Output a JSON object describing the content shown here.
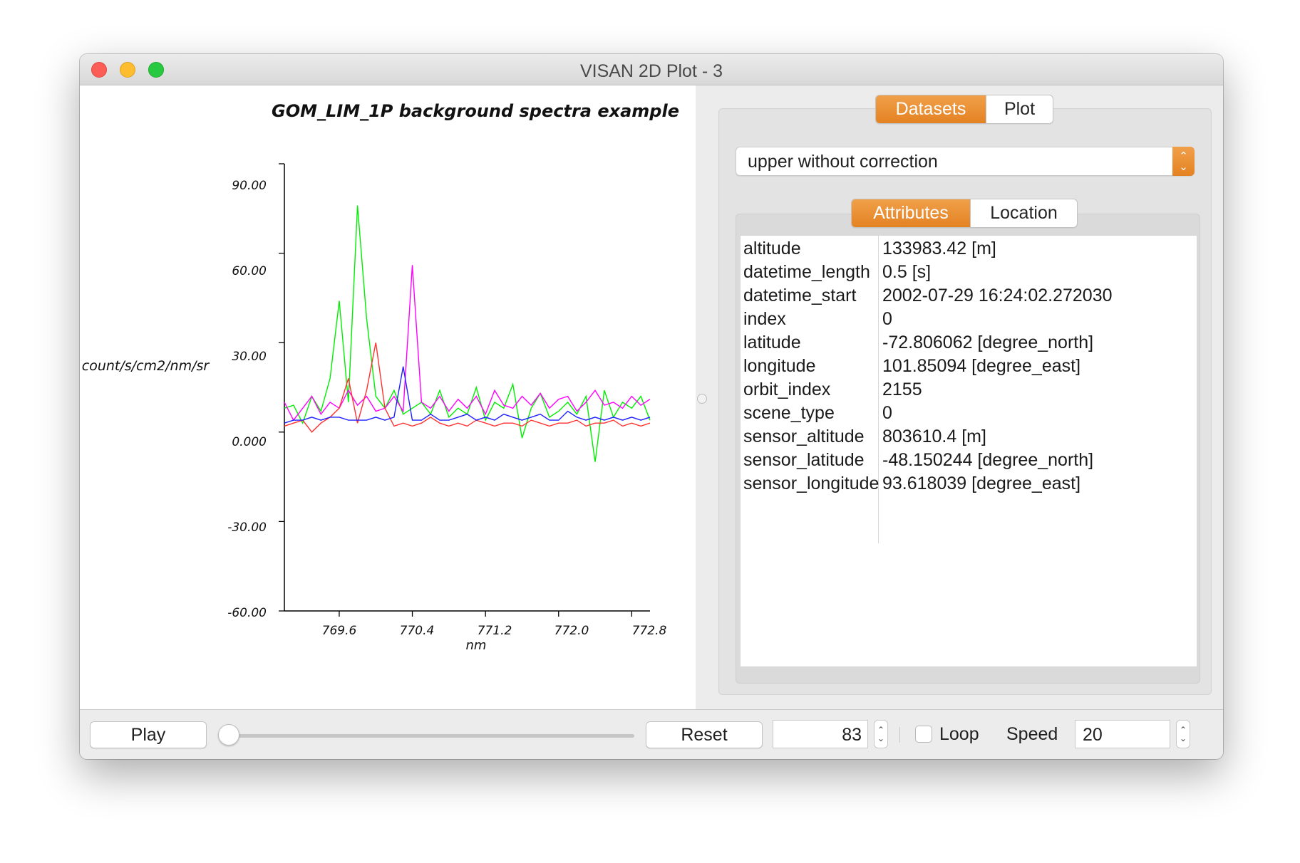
{
  "window": {
    "title": "VISAN 2D Plot - 3"
  },
  "plot": {
    "title": "GOM_LIM_1P background spectra example",
    "ylabel": "count/s/cm2/nm/sr",
    "xlabel": "nm",
    "yticks": [
      "90.00",
      "60.00",
      "30.00",
      "0.000",
      "-30.00",
      "-60.00"
    ],
    "xticks": [
      "769.6",
      "770.4",
      "771.2",
      "772.0",
      "772.8"
    ]
  },
  "chart_data": {
    "type": "line",
    "title": "GOM_LIM_1P background spectra example",
    "xlabel": "nm",
    "ylabel": "count/s/cm2/nm/sr",
    "xlim": [
      769.0,
      773.0
    ],
    "ylim": [
      -60,
      90
    ],
    "grid": false,
    "x": [
      769.0,
      769.1,
      769.2,
      769.3,
      769.4,
      769.5,
      769.6,
      769.7,
      769.8,
      769.9,
      770.0,
      770.1,
      770.2,
      770.3,
      770.4,
      770.5,
      770.6,
      770.7,
      770.8,
      770.9,
      771.0,
      771.1,
      771.2,
      771.3,
      771.4,
      771.5,
      771.6,
      771.7,
      771.8,
      771.9,
      772.0,
      772.1,
      772.2,
      772.3,
      772.4,
      772.5,
      772.6,
      772.7,
      772.8,
      772.9,
      773.0
    ],
    "series": [
      {
        "color": "#00ee00",
        "values": [
          8,
          9,
          3,
          12,
          7,
          18,
          44,
          10,
          76,
          38,
          12,
          8,
          14,
          6,
          8,
          10,
          6,
          14,
          5,
          8,
          6,
          15,
          4,
          10,
          8,
          16,
          -2,
          8,
          13,
          5,
          7,
          10,
          6,
          12,
          -10,
          14,
          5,
          10,
          8,
          12,
          4
        ]
      },
      {
        "color": "#ff00ff",
        "values": [
          10,
          4,
          8,
          12,
          6,
          10,
          8,
          14,
          9,
          12,
          7,
          8,
          12,
          7,
          56,
          10,
          8,
          12,
          7,
          11,
          8,
          12,
          6,
          14,
          9,
          8,
          12,
          9,
          13,
          8,
          11,
          12,
          7,
          10,
          14,
          9,
          10,
          8,
          12,
          9,
          11
        ]
      },
      {
        "color": "#ff3030",
        "values": [
          2,
          3,
          4,
          0,
          3,
          5,
          8,
          18,
          3,
          14,
          30,
          8,
          2,
          3,
          2,
          3,
          5,
          3,
          2,
          3,
          2,
          4,
          3,
          2,
          3,
          3,
          2,
          4,
          3,
          2,
          3,
          3,
          4,
          2,
          3,
          3,
          4,
          2,
          3,
          2,
          3
        ]
      },
      {
        "color": "#2020ff",
        "values": [
          3,
          4,
          4,
          5,
          4,
          5,
          5,
          4,
          4,
          4,
          5,
          4,
          5,
          22,
          4,
          4,
          6,
          4,
          4,
          5,
          6,
          4,
          5,
          4,
          6,
          5,
          4,
          5,
          6,
          4,
          4,
          7,
          5,
          4,
          5,
          4,
          5,
          4,
          5,
          4,
          5
        ]
      }
    ]
  },
  "panel": {
    "tabs": [
      "Datasets",
      "Plot"
    ],
    "dataset": "upper without correction",
    "subtabs": [
      "Attributes",
      "Location"
    ],
    "attributes": [
      {
        "key": "altitude",
        "value": "133983.42 [m]"
      },
      {
        "key": "datetime_length",
        "value": "0.5 [s]"
      },
      {
        "key": "datetime_start",
        "value": "2002-07-29 16:24:02.272030"
      },
      {
        "key": "index",
        "value": "0"
      },
      {
        "key": "latitude",
        "value": "-72.806062 [degree_north]"
      },
      {
        "key": "longitude",
        "value": "101.85094 [degree_east]"
      },
      {
        "key": "orbit_index",
        "value": "2155"
      },
      {
        "key": "scene_type",
        "value": "0"
      },
      {
        "key": "sensor_altitude",
        "value": "803610.4 [m]"
      },
      {
        "key": "sensor_latitude",
        "value": "-48.150244 [degree_north]"
      },
      {
        "key": "sensor_longitude",
        "value": "93.618039 [degree_east]"
      }
    ]
  },
  "controls": {
    "play": "Play",
    "reset": "Reset",
    "frame": "83",
    "slider_position": 0,
    "loop": "Loop",
    "loop_checked": false,
    "speed_label": "Speed",
    "speed": "20"
  },
  "icons": {
    "close": "close-icon",
    "minimize": "minimize-icon",
    "maximize": "maximize-icon",
    "combo": "chevron-updown-icon"
  },
  "colors": {
    "accent": "#e88a2c",
    "close": "#fd5d57",
    "minimize": "#febd2e",
    "maximize": "#28c940"
  }
}
